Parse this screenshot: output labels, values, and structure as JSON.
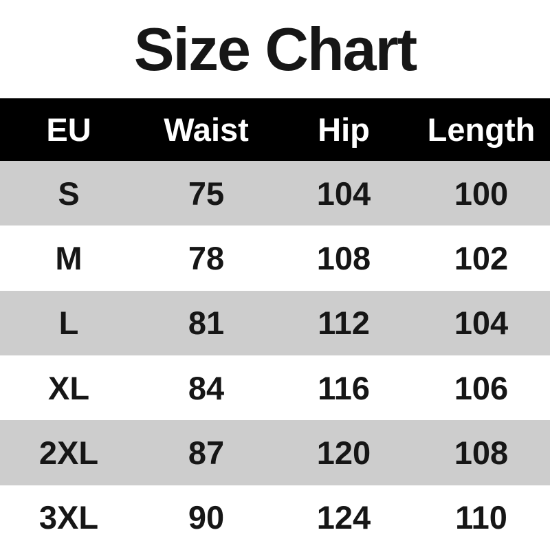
{
  "chart_data": {
    "type": "table",
    "title": "Size Chart",
    "columns": [
      "EU",
      "Waist",
      "Hip",
      "Length"
    ],
    "rows": [
      [
        "S",
        "75",
        "104",
        "100"
      ],
      [
        "M",
        "78",
        "108",
        "102"
      ],
      [
        "L",
        "81",
        "112",
        "104"
      ],
      [
        "XL",
        "84",
        "116",
        "106"
      ],
      [
        "2XL",
        "87",
        "120",
        "108"
      ],
      [
        "3XL",
        "90",
        "124",
        "110"
      ]
    ]
  },
  "colors": {
    "header_bg": "#000000",
    "header_text": "#ffffff",
    "row_bg": "#ffffff",
    "row_alt_bg": "#cdcdcd",
    "body_text": "#161616"
  }
}
